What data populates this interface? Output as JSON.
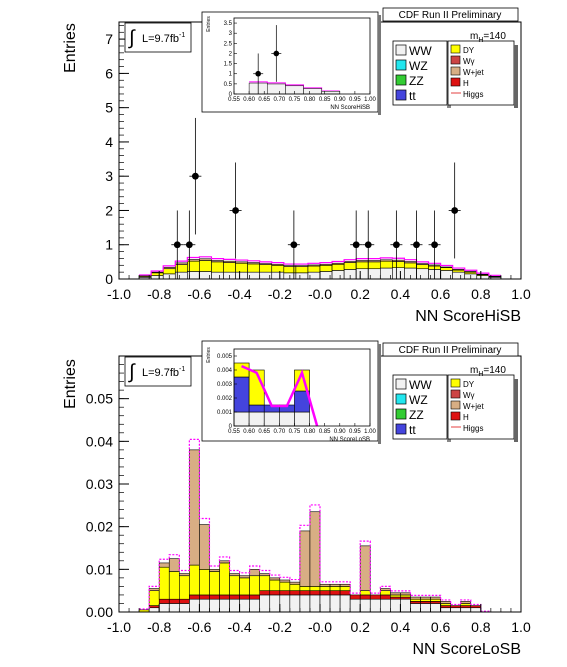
{
  "chart_data": [
    {
      "type": "bar",
      "stacked": true,
      "panel": "top",
      "xlabel": "NN ScoreHiSB",
      "ylabel": "Entries",
      "x_range": [
        -1.0,
        1.0
      ],
      "y_range": [
        0,
        7.5
      ],
      "x_ticks": [
        "-1.0",
        "-0.8",
        "-0.6",
        "-0.4",
        "-0.2",
        "-0.0",
        "0.2",
        "0.4",
        "0.6",
        "0.8",
        "1.0"
      ],
      "y_ticks": [
        "0",
        "1",
        "2",
        "3",
        "4",
        "5",
        "6",
        "7"
      ],
      "header": "CDF Run II Preliminary",
      "lumi_label": "L=9.7fb",
      "lumi_sup": "-1",
      "mass_label": "m",
      "mass_sub": "H",
      "mass_value": "=140",
      "legend_left": [
        "WW",
        "WZ",
        "ZZ",
        "tt"
      ],
      "legend_right": [
        "DY",
        "Wγ",
        "W+jet",
        "H",
        "Higgs"
      ],
      "legend_colors": {
        "WW": "#f2f2f2",
        "WZ": "#22e6ee",
        "ZZ": "#33cc33",
        "tt": "#4444dd",
        "DY": "#ffff00",
        "Wγ": "#cc4444",
        "W+jet": "#d8ae84",
        "H": "#dd1111",
        "Higgs": "#ff00ff"
      },
      "bin_edges": [
        -0.9,
        -0.84,
        -0.78,
        -0.72,
        -0.66,
        -0.6,
        -0.54,
        -0.48,
        -0.42,
        -0.36,
        -0.3,
        -0.24,
        -0.18,
        -0.12,
        -0.06,
        0.0,
        0.06,
        0.12,
        0.18,
        0.24,
        0.3,
        0.36,
        0.42,
        0.48,
        0.54,
        0.6,
        0.66,
        0.72,
        0.78,
        0.84,
        0.9
      ],
      "stack_order": [
        "WW",
        "DY",
        "W+jet"
      ],
      "series": [
        {
          "name": "WW",
          "values": [
            0.05,
            0.1,
            0.15,
            0.2,
            0.22,
            0.22,
            0.2,
            0.2,
            0.2,
            0.2,
            0.2,
            0.2,
            0.18,
            0.18,
            0.2,
            0.22,
            0.25,
            0.28,
            0.3,
            0.3,
            0.32,
            0.33,
            0.32,
            0.3,
            0.28,
            0.25,
            0.2,
            0.15,
            0.1,
            0.05
          ]
        },
        {
          "name": "DY",
          "values": [
            0.03,
            0.08,
            0.15,
            0.22,
            0.3,
            0.32,
            0.3,
            0.28,
            0.26,
            0.24,
            0.22,
            0.2,
            0.18,
            0.18,
            0.18,
            0.18,
            0.18,
            0.2,
            0.2,
            0.2,
            0.2,
            0.18,
            0.15,
            0.12,
            0.1,
            0.08,
            0.06,
            0.05,
            0.03,
            0.02
          ]
        },
        {
          "name": "W+jet",
          "values": [
            0.01,
            0.02,
            0.04,
            0.05,
            0.05,
            0.05,
            0.04,
            0.04,
            0.04,
            0.04,
            0.03,
            0.03,
            0.03,
            0.03,
            0.03,
            0.03,
            0.03,
            0.03,
            0.04,
            0.04,
            0.04,
            0.04,
            0.04,
            0.03,
            0.03,
            0.02,
            0.02,
            0.02,
            0.01,
            0.01
          ]
        }
      ],
      "data_points": [
        {
          "x": -0.71,
          "y": 1,
          "err": 1
        },
        {
          "x": -0.65,
          "y": 1,
          "err": 1
        },
        {
          "x": -0.62,
          "y": 3,
          "err": 1.7
        },
        {
          "x": -0.42,
          "y": 2,
          "err": 1.4
        },
        {
          "x": -0.13,
          "y": 1,
          "err": 1
        },
        {
          "x": 0.18,
          "y": 1,
          "err": 1
        },
        {
          "x": 0.24,
          "y": 1,
          "err": 1
        },
        {
          "x": 0.38,
          "y": 1,
          "err": 1
        },
        {
          "x": 0.48,
          "y": 1,
          "err": 1
        },
        {
          "x": 0.57,
          "y": 1,
          "err": 1
        },
        {
          "x": 0.67,
          "y": 2,
          "err": 1.4
        }
      ],
      "inset": {
        "xlabel": "NN ScoreHiSB",
        "ylabel": "Entries",
        "x_range": [
          0.55,
          1.0
        ],
        "y_range": [
          0,
          3.75
        ],
        "x_ticks": [
          "0.55",
          "0.60",
          "0.65",
          "0.70",
          "0.75",
          "0.80",
          "0.85",
          "0.90",
          "0.95",
          "1.00"
        ],
        "y_ticks": [
          "0",
          "0.5",
          "1",
          "1.5",
          "2",
          "2.5",
          "3",
          "3.5"
        ],
        "bin_edges": [
          0.6,
          0.66,
          0.72,
          0.78,
          0.84,
          0.9
        ],
        "background_total": [
          0.6,
          0.55,
          0.45,
          0.3,
          0.15
        ],
        "data_points": [
          {
            "x": 0.63,
            "y": 1,
            "err": 1
          },
          {
            "x": 0.69,
            "y": 2,
            "err": 1.4
          }
        ]
      }
    },
    {
      "type": "bar",
      "stacked": true,
      "panel": "bottom",
      "xlabel": "NN ScoreLoSB",
      "ylabel": "Entries",
      "x_range": [
        -1.0,
        1.0
      ],
      "y_range": [
        0,
        0.06
      ],
      "x_ticks": [
        "-1.0",
        "-0.8",
        "-0.6",
        "-0.4",
        "-0.2",
        "-0.0",
        "0.2",
        "0.4",
        "0.6",
        "0.8",
        "1.0"
      ],
      "y_ticks": [
        "0.00",
        "0.01",
        "0.02",
        "0.03",
        "0.04",
        "0.05"
      ],
      "header": "CDF Run II Preliminary",
      "lumi_label": "L=9.7fb",
      "lumi_sup": "-1",
      "mass_label": "m",
      "mass_sub": "H",
      "mass_value": "=140",
      "legend_left": [
        "WW",
        "WZ",
        "ZZ",
        "tt"
      ],
      "legend_right": [
        "DY",
        "Wγ",
        "W+jet",
        "H",
        "Higgs"
      ],
      "bin_edges": [
        -0.9,
        -0.85,
        -0.8,
        -0.75,
        -0.7,
        -0.65,
        -0.6,
        -0.55,
        -0.5,
        -0.45,
        -0.4,
        -0.35,
        -0.3,
        -0.25,
        -0.2,
        -0.15,
        -0.1,
        -0.05,
        0.0,
        0.05,
        0.1,
        0.15,
        0.2,
        0.25,
        0.3,
        0.35,
        0.4,
        0.45,
        0.5,
        0.55,
        0.6,
        0.65,
        0.7,
        0.75,
        0.8,
        0.85
      ],
      "stack_order": [
        "WW",
        "H",
        "DY",
        "W+jet"
      ],
      "series": [
        {
          "name": "WW",
          "values": [
            0.0,
            0.001,
            0.002,
            0.002,
            0.002,
            0.003,
            0.003,
            0.003,
            0.003,
            0.003,
            0.003,
            0.003,
            0.004,
            0.004,
            0.004,
            0.004,
            0.004,
            0.004,
            0.004,
            0.004,
            0.004,
            0.003,
            0.003,
            0.003,
            0.003,
            0.003,
            0.003,
            0.002,
            0.002,
            0.002,
            0.001,
            0.001,
            0.001,
            0.001,
            0.0
          ]
        },
        {
          "name": "H",
          "values": [
            0.0,
            0.0005,
            0.001,
            0.001,
            0.001,
            0.001,
            0.001,
            0.001,
            0.001,
            0.001,
            0.001,
            0.001,
            0.001,
            0.001,
            0.001,
            0.001,
            0.001,
            0.001,
            0.001,
            0.001,
            0.001,
            0.001,
            0.001,
            0.001,
            0.001,
            0.0005,
            0.0005,
            0.0005,
            0.0005,
            0.0005,
            0.0005,
            0.0005,
            0.0005,
            0.0005,
            0.0
          ]
        },
        {
          "name": "DY",
          "values": [
            0.0005,
            0.0035,
            0.0075,
            0.0065,
            0.0055,
            0.007,
            0.006,
            0.0055,
            0.0075,
            0.0045,
            0.004,
            0.0045,
            0.0035,
            0.0025,
            0.002,
            0.0015,
            0.001,
            0.001,
            0.001,
            0.001,
            0.001,
            0.0,
            0.001,
            0.0,
            0.001,
            0.0005,
            0.0005,
            0.0005,
            0.0005,
            0.0005,
            0.0005,
            0.0,
            0.0005,
            0.0,
            0.0
          ]
        },
        {
          "name": "W+jet",
          "values": [
            0.0,
            0.0005,
            0.001,
            0.003,
            0.0005,
            0.027,
            0.0105,
            0.0005,
            0.0005,
            0.0005,
            0.0005,
            0.0015,
            0.0005,
            0.0005,
            0.0005,
            0.0005,
            0.013,
            0.0175,
            0.0005,
            0.0005,
            0.0005,
            0.0,
            0.0105,
            0.0,
            0.0005,
            0.0005,
            0.0005,
            0.0005,
            0.0005,
            0.0005,
            0.0005,
            0.0,
            0.0005,
            0.0,
            0.0
          ]
        }
      ],
      "inset": {
        "xlabel": "NN ScoreLoSB",
        "ylabel": "Entries",
        "x_range": [
          0.55,
          1.0
        ],
        "y_range": [
          0,
          0.0055
        ],
        "x_ticks": [
          "0.55",
          "0.60",
          "0.65",
          "0.70",
          "0.75",
          "0.80",
          "0.85",
          "0.90",
          "0.95",
          "1.00"
        ],
        "y_ticks": [
          "0",
          "0.001",
          "0.002",
          "0.003",
          "0.004",
          "0.005"
        ],
        "bin_edges": [
          0.55,
          0.6,
          0.65,
          0.7,
          0.75,
          0.8,
          0.85
        ],
        "stack_order": [
          "WW",
          "tt",
          "DY"
        ],
        "series": [
          {
            "name": "WW",
            "values": [
              0.001,
              0.001,
              0.001,
              0.001,
              0.001,
              0.0
            ]
          },
          {
            "name": "tt",
            "values": [
              0.0025,
              0.0005,
              0.0005,
              0.0005,
              0.0015,
              0.0
            ]
          },
          {
            "name": "DY",
            "values": [
              0.001,
              0.0025,
              0.0,
              0.0,
              0.0015,
              0.0
            ]
          }
        ]
      }
    }
  ]
}
